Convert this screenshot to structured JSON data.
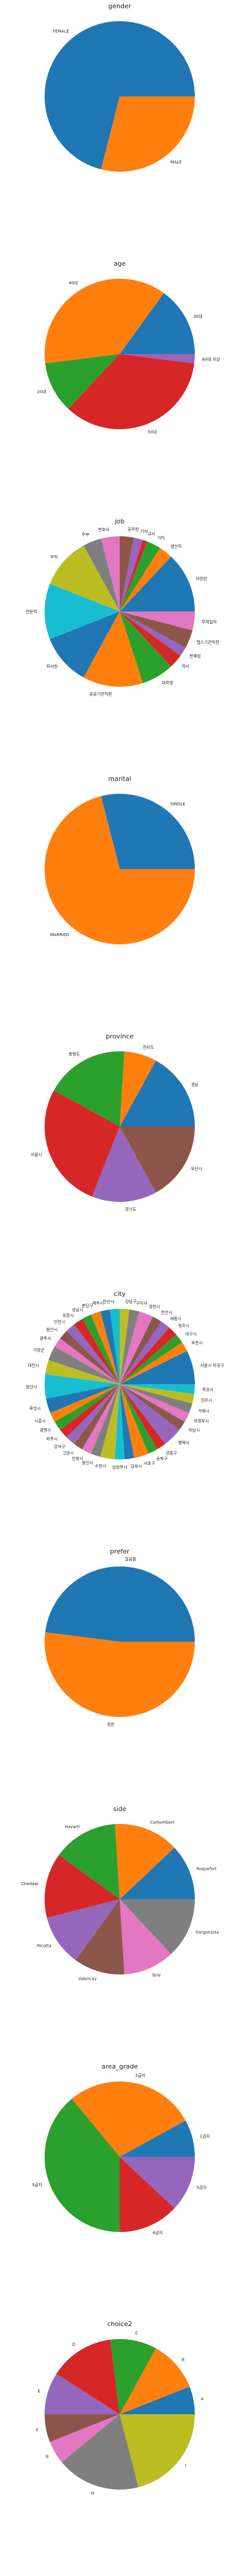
{
  "figure": {
    "background": "#ffffff"
  },
  "palette": [
    "#1f77b4",
    "#ff7f0e",
    "#2ca02c",
    "#d62728",
    "#9467bd",
    "#8c564b",
    "#e377c2",
    "#7f7f7f",
    "#bcbd22",
    "#17becf"
  ],
  "chart_data": [
    {
      "type": "pie",
      "title": "gender",
      "categories": [
        "FEMALE",
        "MALE"
      ],
      "values": [
        71,
        29
      ]
    },
    {
      "type": "pie",
      "title": "age",
      "categories": [
        "30대",
        "40대",
        "20대",
        "50대",
        "60대 이상"
      ],
      "values": [
        15,
        37,
        11,
        35,
        2
      ]
    },
    {
      "type": "pie",
      "title": "job",
      "categories": [
        "자영업",
        "생산직",
        "기타",
        "교사",
        "기자",
        "공무원",
        "변호사",
        "주부",
        "무직",
        "전문직",
        "회사원",
        "공공기관직원",
        "대학생",
        "약사",
        "판매원",
        "헬스기관직원",
        "무역업자"
      ],
      "values": [
        13,
        3,
        3,
        1,
        2,
        3,
        4,
        4,
        11,
        12,
        11,
        13,
        7,
        3,
        2,
        4,
        4
      ]
    },
    {
      "type": "pie",
      "title": "marital",
      "categories": [
        "SINGLE",
        "MARRIED"
      ],
      "values": [
        29,
        71
      ]
    },
    {
      "type": "pie",
      "title": "province",
      "categories": [
        "경남",
        "전라도",
        "충청도",
        "서울시",
        "경기도",
        "부산시"
      ],
      "values": [
        17,
        7,
        18,
        27,
        14,
        17
      ]
    },
    {
      "type": "pie",
      "title": "city",
      "categories": [
        "서울시 마포구",
        "부천시",
        "대구시",
        "청주시",
        "세종시",
        "천안시",
        "창원시",
        "구미시",
        "강남구",
        "안산시",
        "제주시",
        "분당구",
        "성남시",
        "포항시",
        "인천시",
        "울산시",
        "광주시",
        "기장군",
        "대전시",
        "양산시",
        "화성시",
        "시흥시",
        "광명시",
        "파주시",
        "강서구",
        "고양시",
        "안양시",
        "용인시",
        "수원시",
        "남양주시",
        "김포시",
        "서초구",
        "송파구",
        "강동구",
        "평택시",
        "하남시",
        "의정부시",
        "거제시",
        "진주시",
        "목포시"
      ],
      "values": [
        7,
        2,
        2,
        2,
        2,
        2,
        3,
        2,
        2,
        2,
        2,
        2,
        2,
        2,
        2,
        2,
        2,
        3,
        3,
        5,
        3,
        2,
        2,
        2,
        2,
        2,
        2,
        2,
        3,
        2,
        2,
        3,
        2,
        2,
        4,
        2,
        2,
        2,
        2,
        2
      ]
    },
    {
      "type": "pie",
      "title": "prefer",
      "categories": [
        "깔끔함",
        "정돈"
      ],
      "values": [
        48,
        52
      ]
    },
    {
      "type": "pie",
      "title": "side",
      "categories": [
        "Roquefort",
        "Camembert",
        "Havarti",
        "Cheddar",
        "Ricotta",
        "Valencay",
        "Brie",
        "Gorgonzola"
      ],
      "values": [
        12,
        14,
        14,
        14,
        11,
        11,
        11,
        13
      ]
    },
    {
      "type": "pie",
      "title": "area_grade",
      "categories": [
        "1급지",
        "2급지",
        "3급지",
        "4급지",
        "5급지"
      ],
      "values": [
        8,
        28,
        39,
        13,
        12
      ]
    },
    {
      "type": "pie",
      "title": "choice2",
      "categories": [
        "A",
        "B",
        "C",
        "D",
        "E",
        "F",
        "G",
        "H",
        "I"
      ],
      "values": [
        6,
        11,
        10,
        14,
        9,
        6,
        5,
        18,
        21
      ]
    }
  ]
}
